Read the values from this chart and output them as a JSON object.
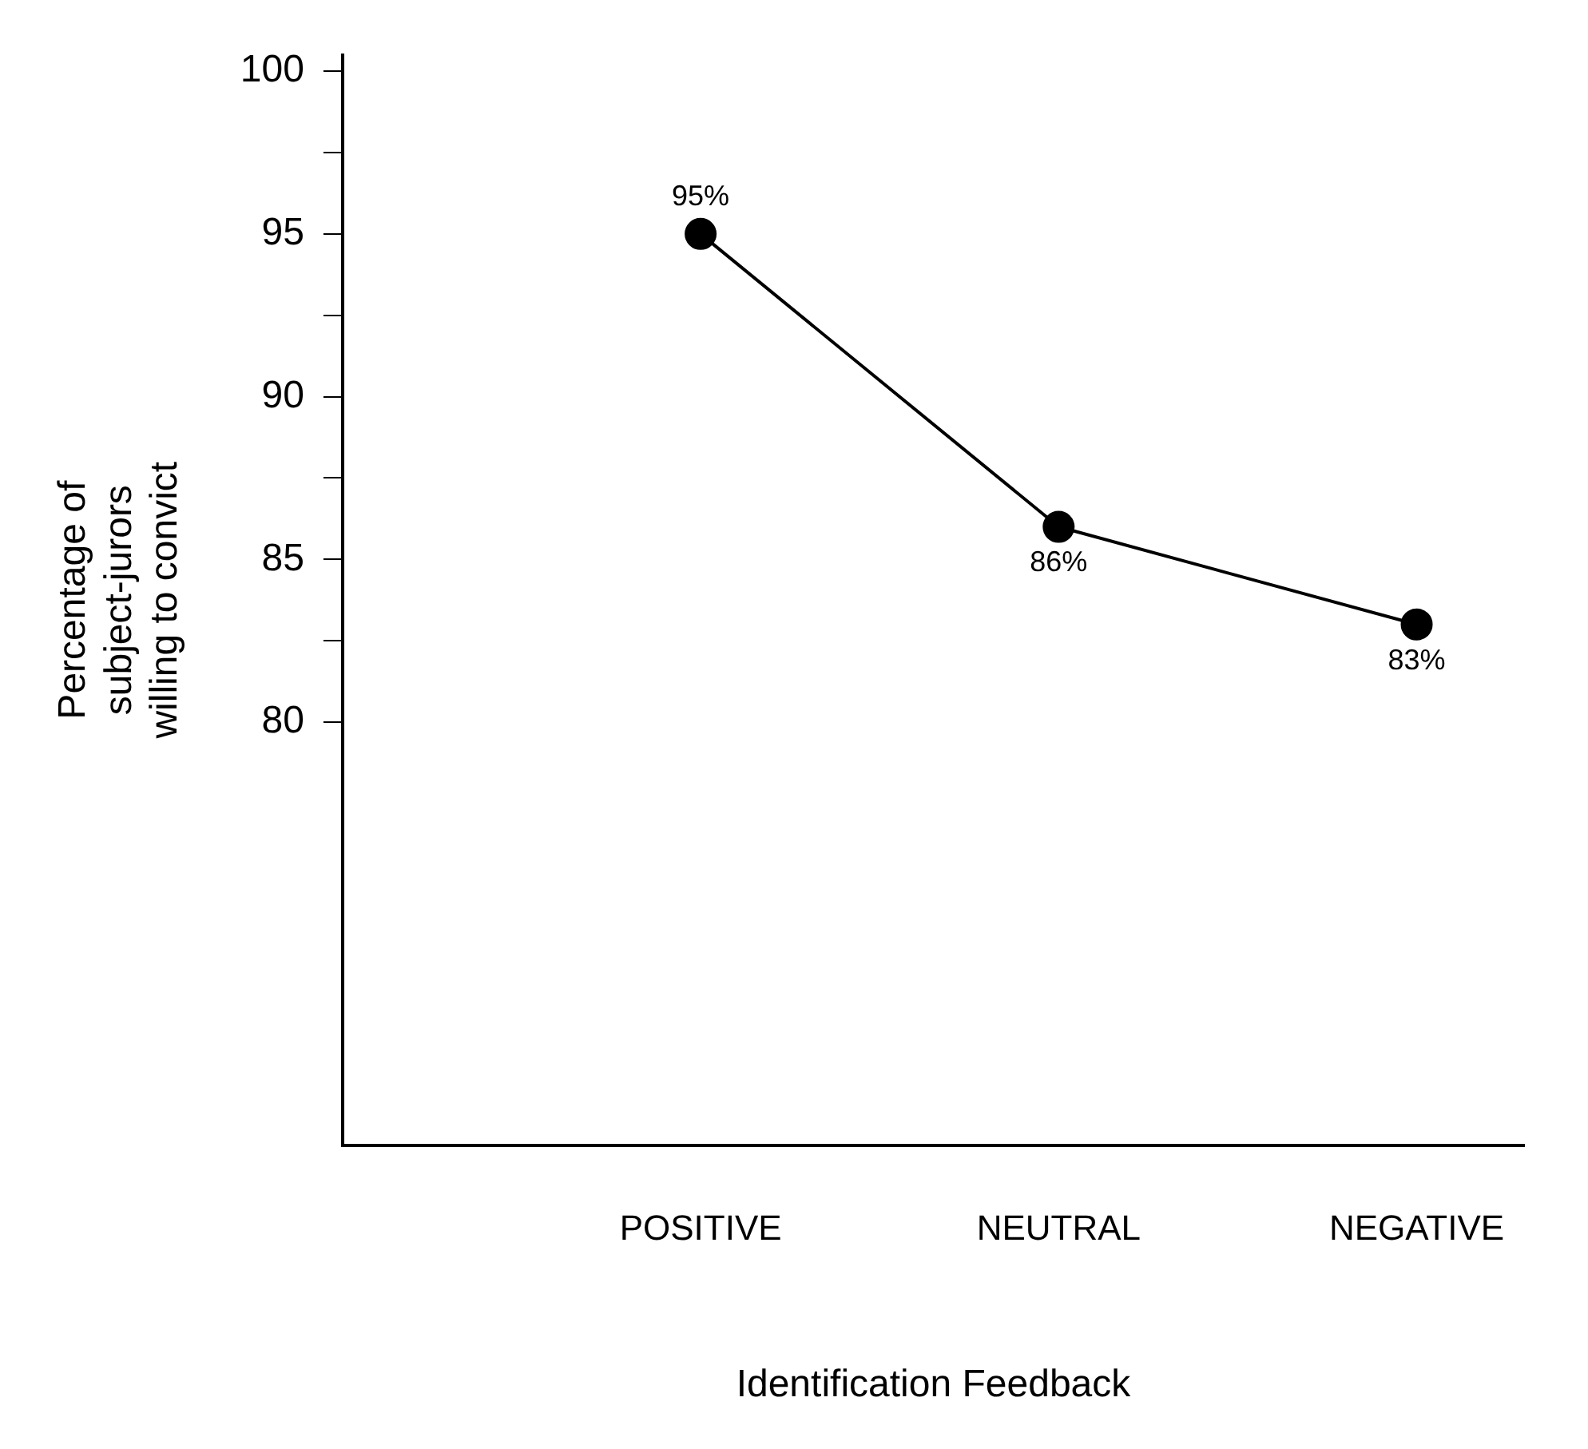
{
  "chart_data": {
    "type": "line",
    "xlabel": "Identification Feedback",
    "ylabel": "Percentage of\nsubject-jurors\nwilling to convict",
    "categories": [
      "POSITIVE",
      "NEUTRAL",
      "NEGATIVE"
    ],
    "series": [
      {
        "color": "#000000",
        "values": [
          95,
          86,
          83
        ],
        "value_labels": [
          "95%",
          "86%",
          "83%"
        ]
      }
    ],
    "ylim": [
      67,
      100.5
    ],
    "yticks": [
      80,
      {
        "value": 82.5,
        "label": null
      },
      85,
      {
        "value": 87.5,
        "label": null
      },
      90,
      {
        "value": 92.5,
        "label": null
      },
      95,
      {
        "value": 97.5,
        "label": null
      },
      100
    ],
    "grid": false,
    "legend": false,
    "marker": "circle",
    "line_style": "solid"
  }
}
